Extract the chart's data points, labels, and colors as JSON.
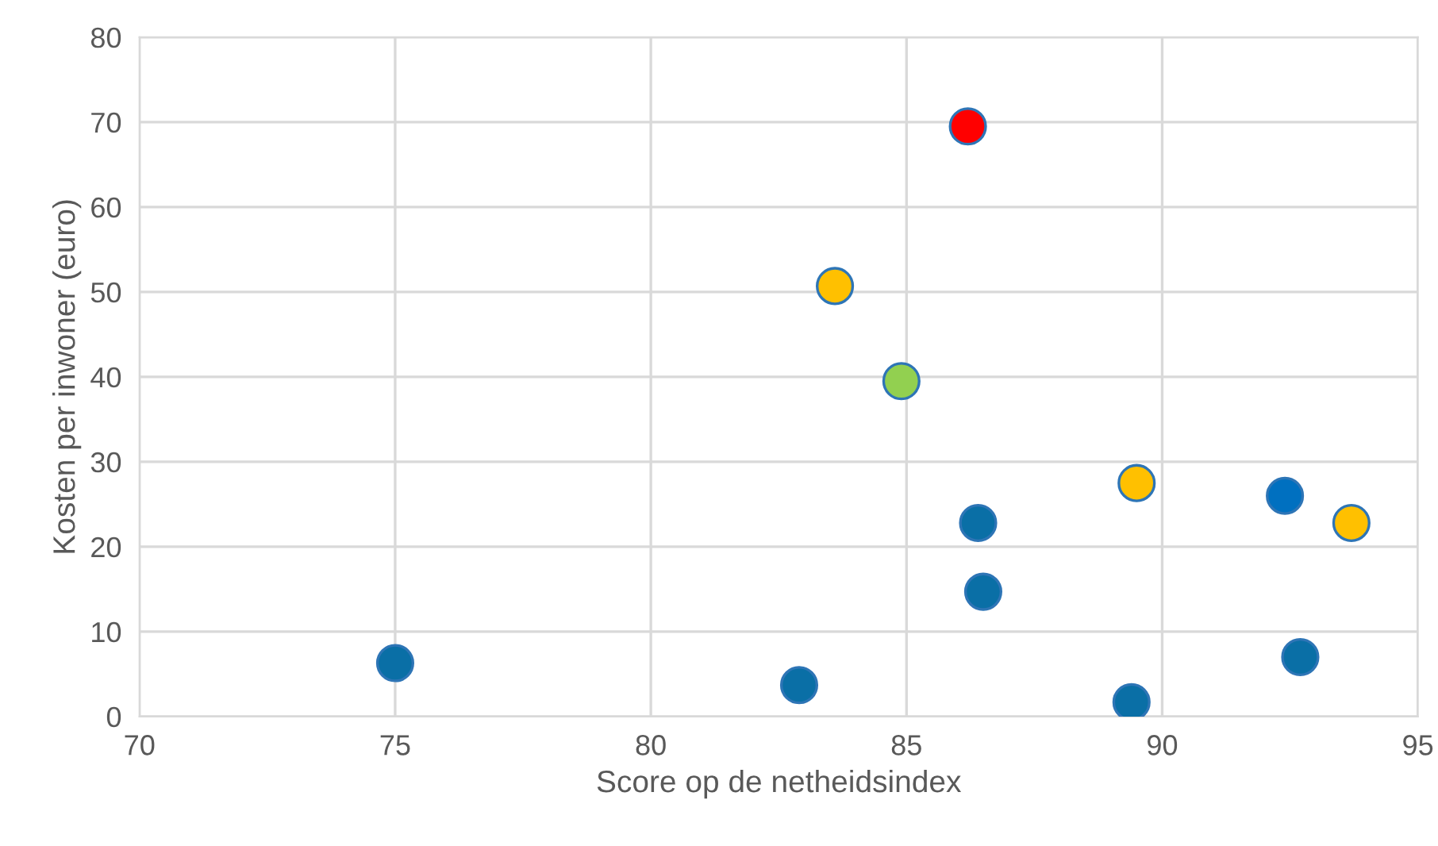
{
  "chart_data": {
    "type": "scatter",
    "xlabel": "Score op de netheidsindex",
    "ylabel": "Kosten per inwoner (euro)",
    "x": [
      86.2,
      83.6,
      84.9,
      89.5,
      92.4,
      93.7,
      86.4,
      86.5,
      75.0,
      82.9,
      89.4,
      92.7
    ],
    "values": [
      69.5,
      50.7,
      39.5,
      27.5,
      26.0,
      22.8,
      22.8,
      14.7,
      6.3,
      3.7,
      1.7,
      7.0
    ],
    "colors": [
      "#ff0000",
      "#ffc000",
      "#92d050",
      "#ffc000",
      "#0070c0",
      "#ffc000",
      "#0a6fa6",
      "#0a6fa6",
      "#0a6fa6",
      "#0a6fa6",
      "#0a6fa6",
      "#0a6fa6"
    ],
    "xlim": [
      70,
      95
    ],
    "xticks": [
      70,
      75,
      80,
      85,
      90,
      95
    ],
    "ylim": [
      0,
      80
    ],
    "yticks": [
      0,
      10,
      20,
      30,
      40,
      50,
      60,
      70,
      80
    ],
    "grid": true,
    "marker": "circle",
    "legend": false
  }
}
